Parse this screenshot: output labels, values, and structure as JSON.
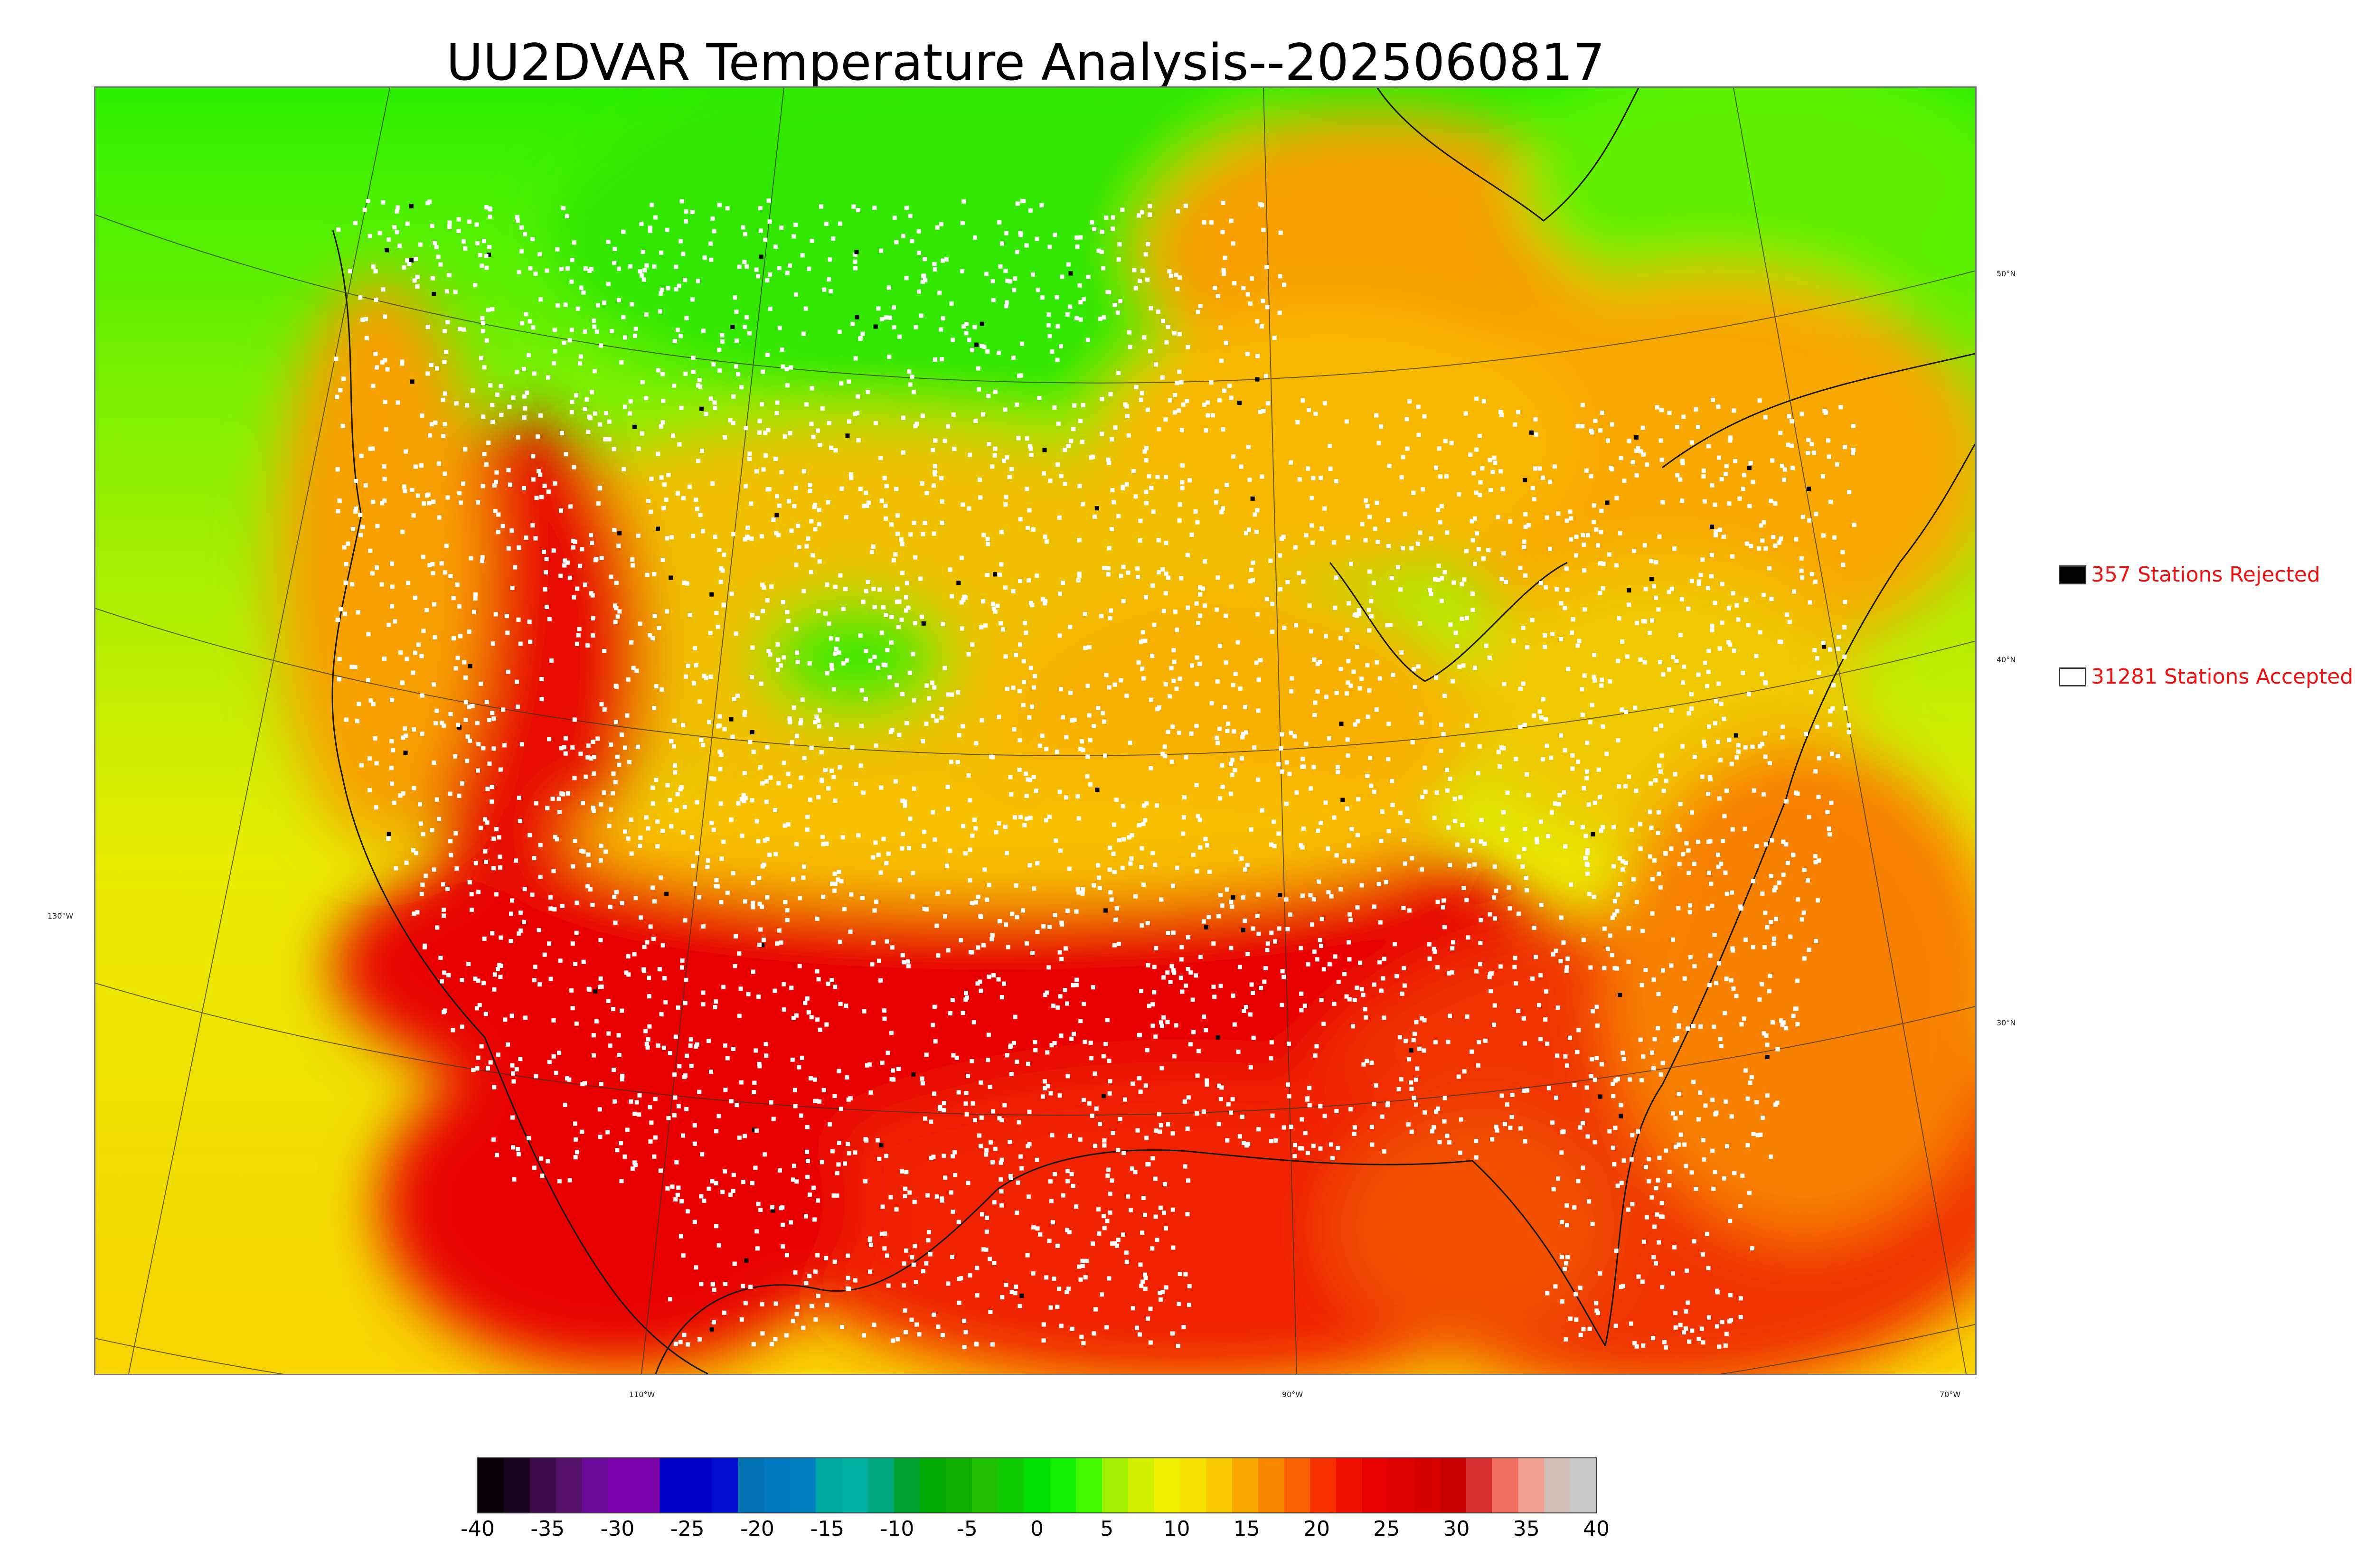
{
  "title": "UU2DVAR Temperature Analysis--2025060817",
  "map": {
    "longitude_labels": [
      "130°W",
      "110°W",
      "90°W",
      "70°W"
    ],
    "latitude_labels": [
      "50°N",
      "40°N",
      "30°N"
    ]
  },
  "legend": {
    "rejected": {
      "label": "357 Stations Rejected",
      "count": 357,
      "color": "#000000"
    },
    "accepted": {
      "label": "31281 Stations Accepted",
      "count": 31281,
      "color": "#ffffff"
    }
  },
  "colorbar": {
    "min": -40,
    "max": 40,
    "ticks": [
      "-40",
      "-35",
      "-30",
      "-25",
      "-20",
      "-15",
      "-10",
      "-5",
      "0",
      "5",
      "10",
      "15",
      "20",
      "25",
      "30",
      "35",
      "40"
    ],
    "colors": [
      "#0a0008",
      "#1a0520",
      "#3a0a4a",
      "#55106a",
      "#6a0a9a",
      "#7a00a8",
      "#7a00a8",
      "#0000c8",
      "#0000c8",
      "#0010d0",
      "#0070b0",
      "#0078c0",
      "#0080c0",
      "#00a8a0",
      "#00b0a0",
      "#00a880",
      "#00a030",
      "#00a800",
      "#10b000",
      "#20c000",
      "#10cc00",
      "#00e000",
      "#10f000",
      "#40f800",
      "#a0f000",
      "#d0f000",
      "#f0f000",
      "#f8e000",
      "#f8c800",
      "#f8a800",
      "#f88800",
      "#f86000",
      "#f83000",
      "#f01000",
      "#e80000",
      "#e00000",
      "#d80000",
      "#c80000",
      "#d83030",
      "#f07060",
      "#f0a090",
      "#d0c0b8",
      "#c8c8c8"
    ]
  }
}
